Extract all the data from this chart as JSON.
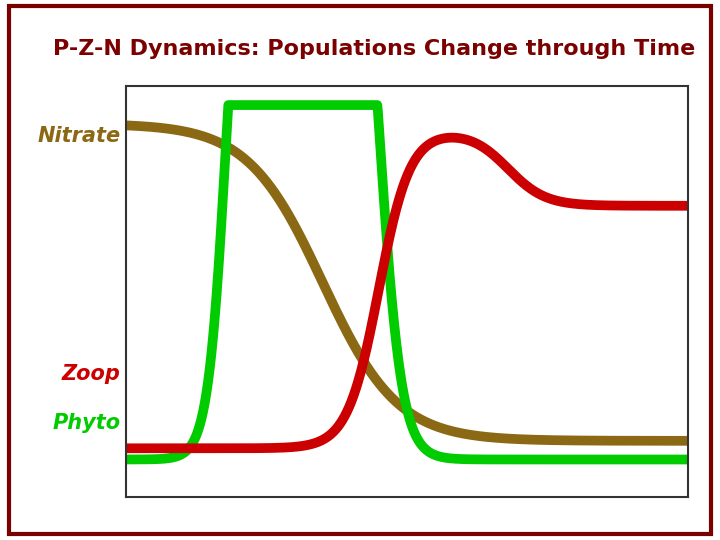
{
  "title": "P-Z-N Dynamics: Populations Change through Time",
  "title_color": "#7B0000",
  "title_fontsize": 16,
  "background_color": "#FFFFFF",
  "plot_bg_color": "#FFFFFF",
  "border_color": "#7B0000",
  "label_nitrate": "Nitrate",
  "label_zoop": "Zoop",
  "label_phyto": "Phyto",
  "color_nitrate": "#8B6914",
  "color_zoop": "#CC0000",
  "color_phyto": "#00CC00",
  "label_fontsize": 15,
  "linewidth": 7,
  "xlim": [
    0,
    10
  ],
  "ylim": [
    -1,
    10
  ]
}
